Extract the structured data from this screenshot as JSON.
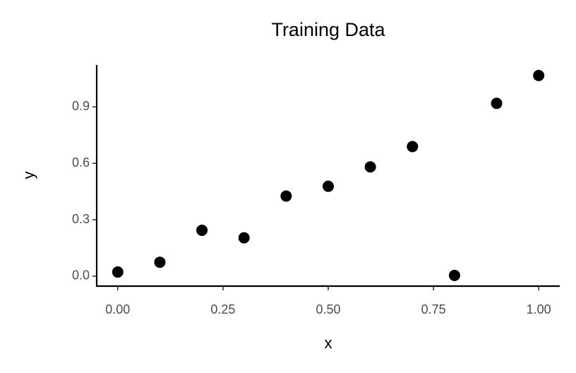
{
  "chart_data": {
    "type": "scatter",
    "title": "Training Data",
    "x_label": "x",
    "y_label": "y",
    "x": [
      0.0,
      0.1,
      0.2,
      0.3,
      0.4,
      0.5,
      0.6,
      0.7,
      0.8,
      0.9,
      1.0
    ],
    "y": [
      0.022,
      0.074,
      0.244,
      0.204,
      0.426,
      0.478,
      0.581,
      0.689,
      0.004,
      0.919,
      1.067
    ],
    "color": "#000000",
    "xlim": [
      -0.05,
      1.05
    ],
    "xticks": [
      {
        "value": 0,
        "label": "0.00"
      },
      {
        "value": 0.25,
        "label": "0.25"
      },
      {
        "value": 0.5,
        "label": "0.50"
      },
      {
        "value": 0.75,
        "label": "0.75"
      },
      {
        "value": 1,
        "label": "1.00"
      }
    ],
    "ylim": [
      -0.053,
      1.123
    ],
    "yticks": [
      {
        "value": 0,
        "label": "0.0"
      },
      0.3,
      0.6,
      0.9
    ],
    "grid": false
  }
}
